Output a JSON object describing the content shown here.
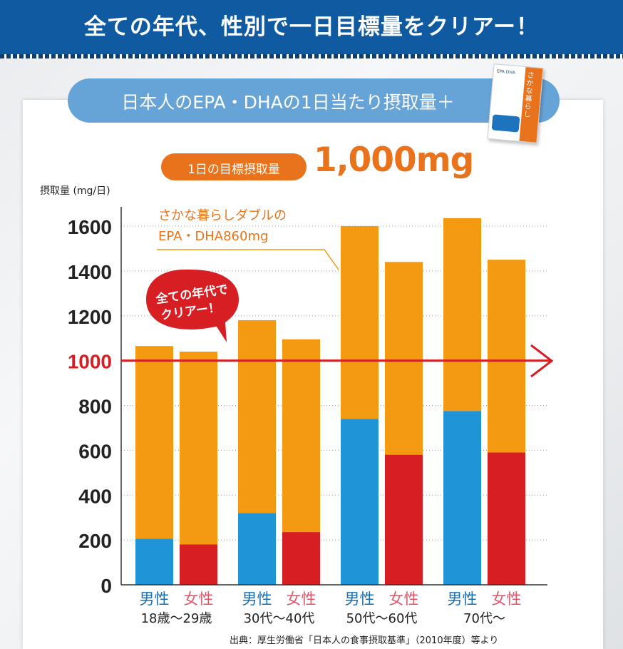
{
  "banner": {
    "title": "全ての年代、性別で一日目標量をクリアー！"
  },
  "subtitle": "日本人のEPA・DHAの1日当たり摂取量＋",
  "product": {
    "name": "さかな暮らし",
    "small_text": "EPA DHA"
  },
  "target": {
    "label": "1日の目標摂取量",
    "value": "1,000mg"
  },
  "callout": {
    "line1": "全ての年代で",
    "line2": "クリアー！"
  },
  "note": {
    "line1": "さかな暮らしダブルの",
    "line2": "EPA・DHA860mg"
  },
  "source": "出典：厚生労働省「日本人の食事摂取基準」（2010年度）等より",
  "colors": {
    "supplement": "#f39a12",
    "male": "#1f94d6",
    "female": "#d61e23",
    "target_line": "#d61e23",
    "banner": "#0f5aa0",
    "accent": "#e8731c"
  },
  "chart_data": {
    "type": "bar",
    "stacked": true,
    "ylabel": "摂取量 (mg/日)",
    "ylim": [
      0,
      1600
    ],
    "yticks": [
      0,
      200,
      400,
      600,
      800,
      1000,
      1200,
      1400,
      1600
    ],
    "highlight_tick": 1000,
    "target_line": 1000,
    "grid": "dotted horizontal",
    "groups": [
      "18歳～29歳",
      "30代～40代",
      "50代～60代",
      "70代～"
    ],
    "bars": [
      {
        "group": 0,
        "sex": "男性",
        "base": 205,
        "total": 1065
      },
      {
        "group": 0,
        "sex": "女性",
        "base": 180,
        "total": 1040
      },
      {
        "group": 1,
        "sex": "男性",
        "base": 320,
        "total": 1180
      },
      {
        "group": 1,
        "sex": "女性",
        "base": 235,
        "total": 1095
      },
      {
        "group": 2,
        "sex": "男性",
        "base": 740,
        "total": 1600
      },
      {
        "group": 2,
        "sex": "女性",
        "base": 580,
        "total": 1440
      },
      {
        "group": 3,
        "sex": "男性",
        "base": 775,
        "total": 1635
      },
      {
        "group": 3,
        "sex": "女性",
        "base": 590,
        "total": 1450
      }
    ],
    "supplement_mg": 860
  }
}
